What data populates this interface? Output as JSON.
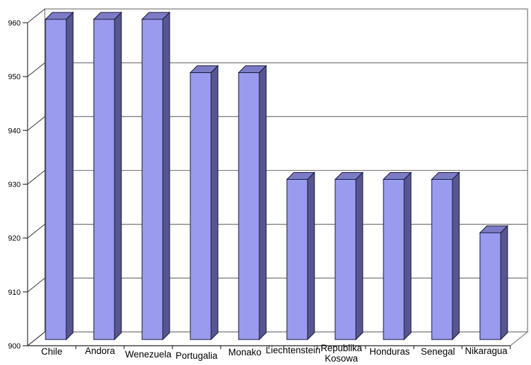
{
  "chart_data": {
    "type": "bar",
    "style": "3d-column",
    "title": "",
    "xlabel": "",
    "ylabel": "",
    "categories": [
      "Chile",
      "Andora",
      "Wenezuela",
      "Portugalia",
      "Monako",
      "Liechtenstein",
      "Republika Kosowa",
      "Honduras",
      "Senegal",
      "Nikaragua"
    ],
    "values": [
      960,
      960,
      960,
      950,
      950,
      930,
      930,
      930,
      930,
      920
    ],
    "ylim": [
      900,
      960
    ],
    "ytick_step": 10,
    "ytick_labels": [
      "900",
      "910",
      "920",
      "930",
      "940",
      "950",
      "960"
    ],
    "grid": true,
    "legend": "none",
    "colors": {
      "bar_front": "#9a9aee",
      "bar_top": "#7c7cc6",
      "bar_side": "#565690",
      "bar_outline": "#161638",
      "grid_line": "#808080",
      "axis_line": "#303030",
      "text": "#000000",
      "background": "#ffffff"
    }
  }
}
